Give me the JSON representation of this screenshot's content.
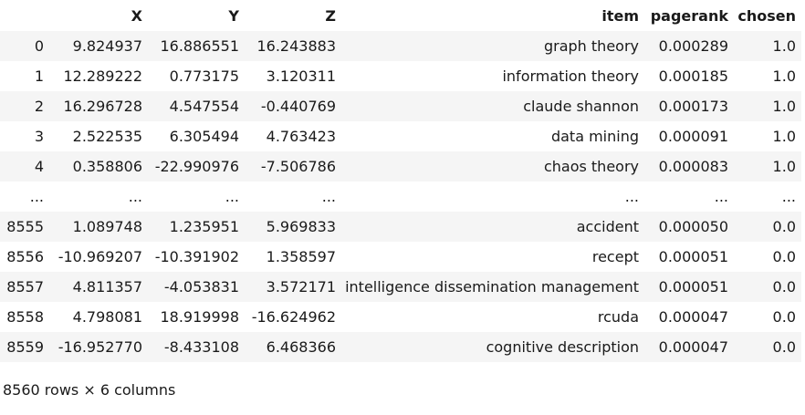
{
  "table": {
    "columns": [
      "",
      "X",
      "Y",
      "Z",
      "item",
      "pagerank",
      "chosen"
    ],
    "rows": [
      [
        "0",
        "9.824937",
        "16.886551",
        "16.243883",
        "graph theory",
        "0.000289",
        "1.0"
      ],
      [
        "1",
        "12.289222",
        "0.773175",
        "3.120311",
        "information theory",
        "0.000185",
        "1.0"
      ],
      [
        "2",
        "16.296728",
        "4.547554",
        "-0.440769",
        "claude shannon",
        "0.000173",
        "1.0"
      ],
      [
        "3",
        "2.522535",
        "6.305494",
        "4.763423",
        "data mining",
        "0.000091",
        "1.0"
      ],
      [
        "4",
        "0.358806",
        "-22.990976",
        "-7.506786",
        "chaos theory",
        "0.000083",
        "1.0"
      ],
      [
        "...",
        "...",
        "...",
        "...",
        "...",
        "...",
        "..."
      ],
      [
        "8555",
        "1.089748",
        "1.235951",
        "5.969833",
        "accident",
        "0.000050",
        "0.0"
      ],
      [
        "8556",
        "-10.969207",
        "-10.391902",
        "1.358597",
        "recept",
        "0.000051",
        "0.0"
      ],
      [
        "8557",
        "4.811357",
        "-4.053831",
        "3.572171",
        "intelligence dissemination management",
        "0.000051",
        "0.0"
      ],
      [
        "8558",
        "4.798081",
        "18.919998",
        "-16.624962",
        "rcuda",
        "0.000047",
        "0.0"
      ],
      [
        "8559",
        "-16.952770",
        "-8.433108",
        "6.468366",
        "cognitive description",
        "0.000047",
        "0.0"
      ]
    ],
    "shape_text": "8560 rows × 6 columns"
  }
}
